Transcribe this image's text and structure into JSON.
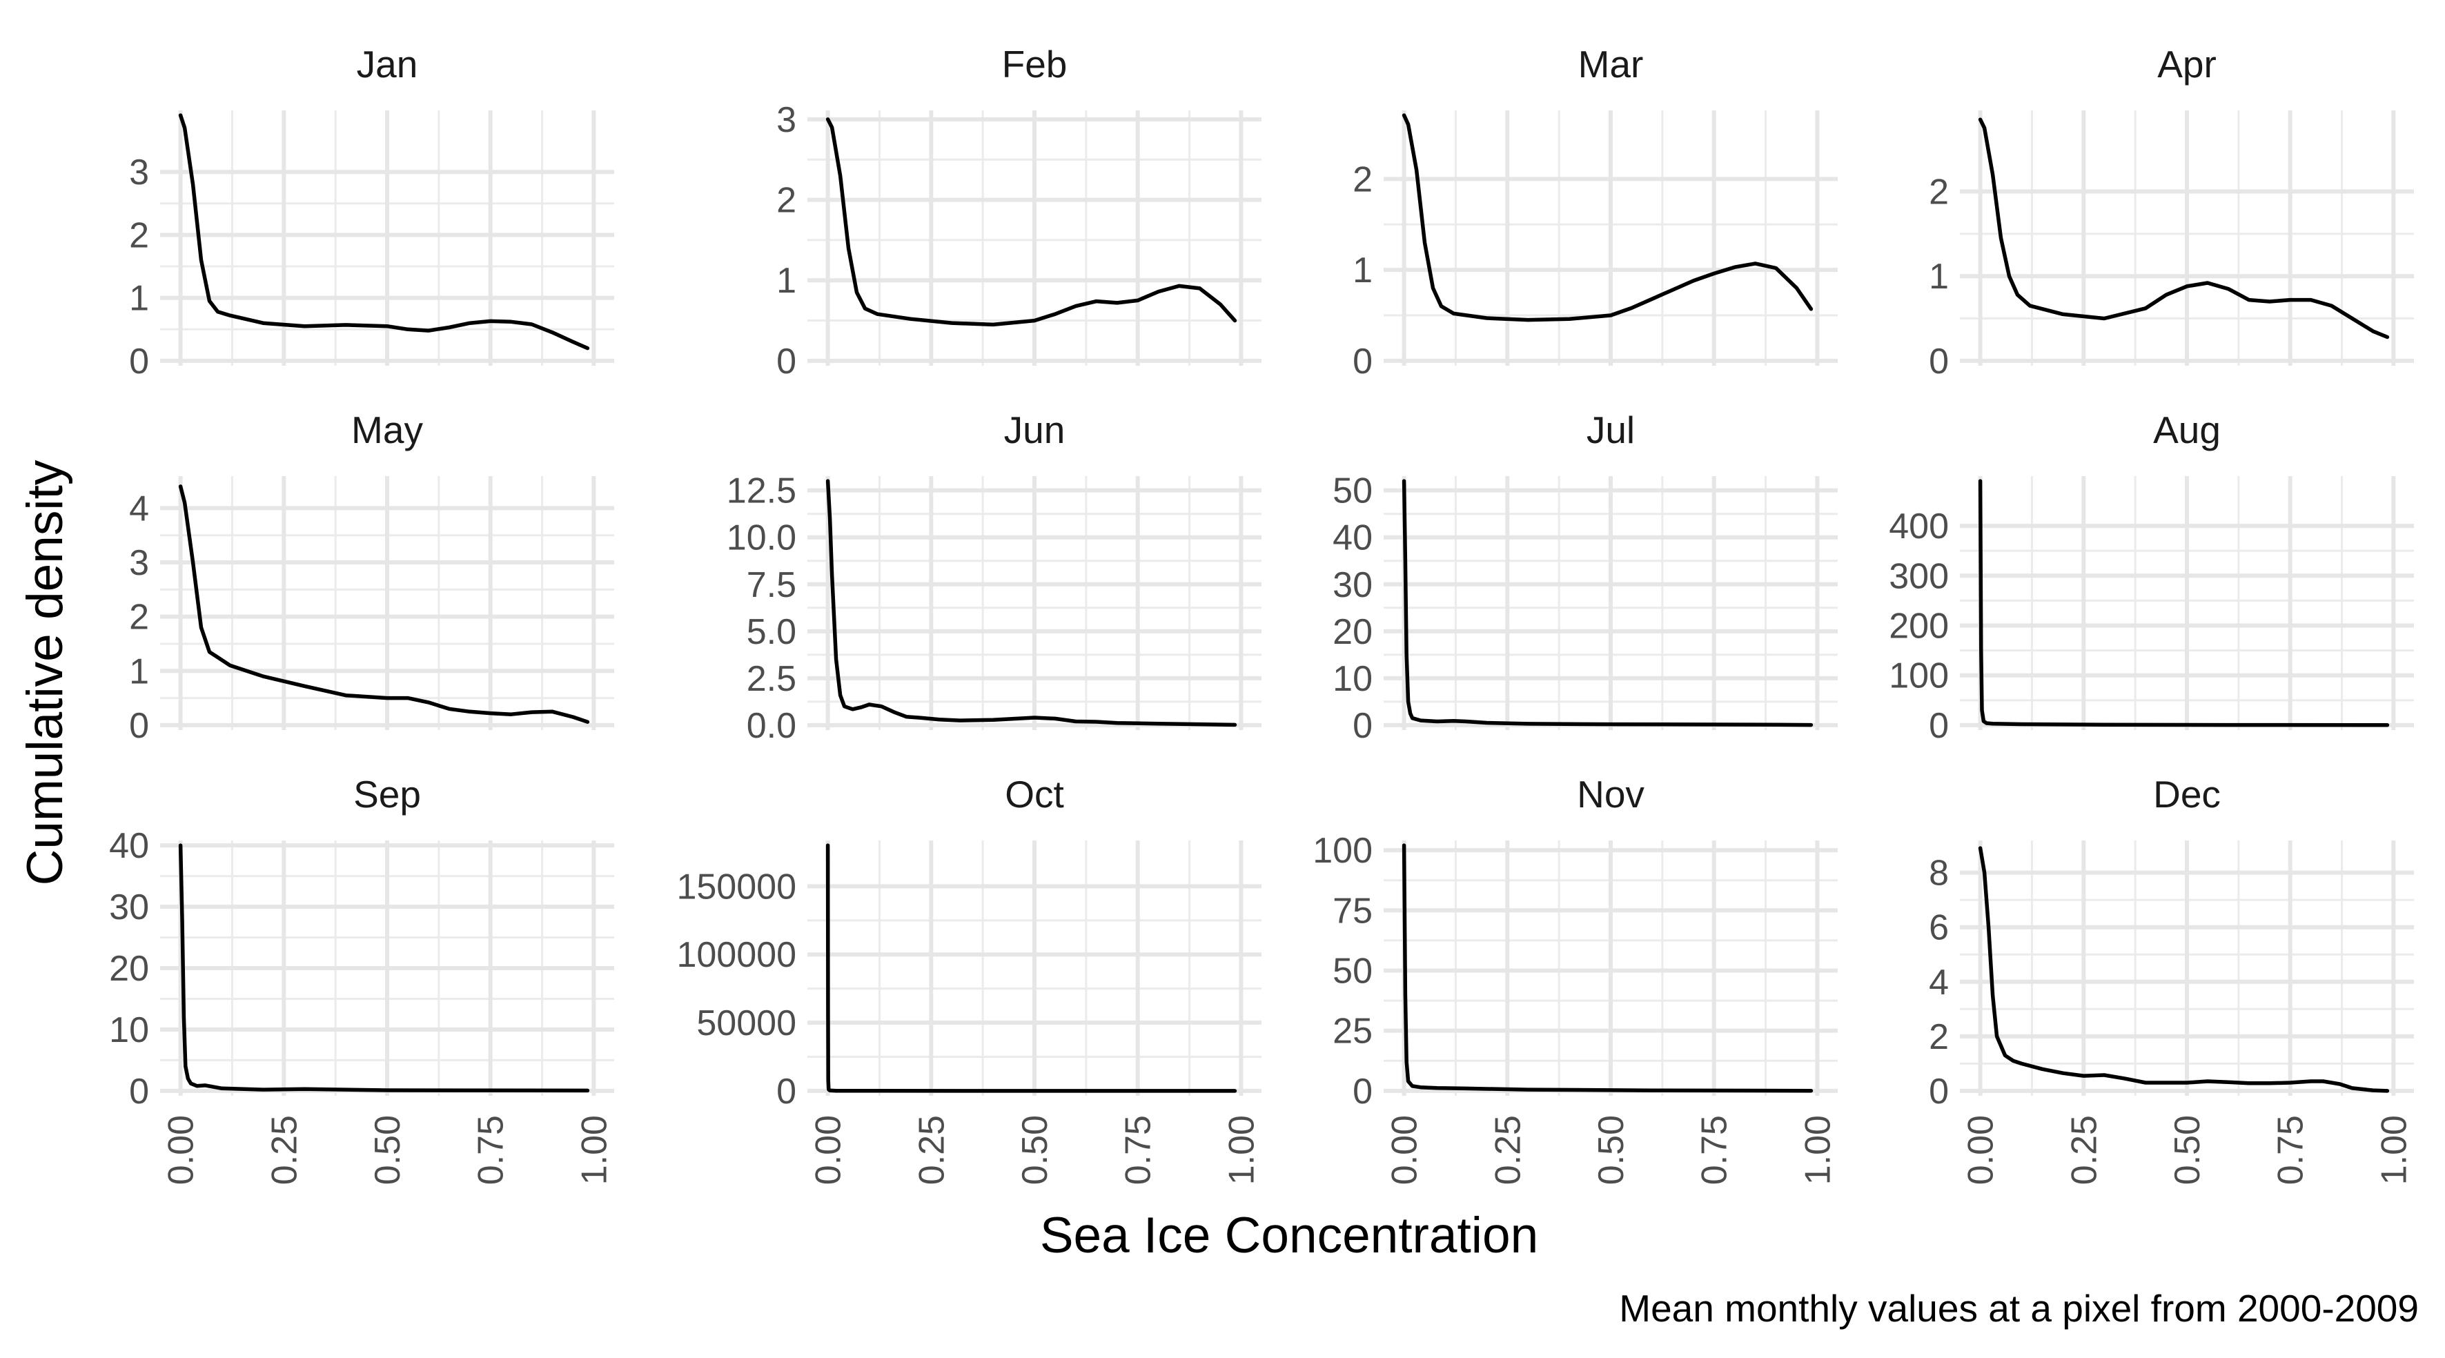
{
  "chart_data": {
    "type": "line",
    "xlabel": "Sea Ice Concentration",
    "ylabel": "Cumulative density",
    "caption": "Mean monthly values at a pixel from 2000-2009",
    "xlim": [
      0,
      1
    ],
    "x_ticks": [
      0,
      0.25,
      0.5,
      0.75,
      1
    ],
    "x_tick_labels": [
      "0.00",
      "0.25",
      "0.50",
      "0.75",
      "1.00"
    ],
    "grid": true,
    "shared_x": true,
    "free_y": true,
    "panels": [
      {
        "name": "Jan",
        "ylim": [
          0,
          3.9
        ],
        "y_ticks": [
          0,
          1,
          2,
          3
        ],
        "y_tick_labels": [
          "0",
          "1",
          "2",
          "3"
        ],
        "x": [
          0,
          0.01,
          0.03,
          0.05,
          0.07,
          0.09,
          0.12,
          0.2,
          0.3,
          0.4,
          0.5,
          0.55,
          0.6,
          0.65,
          0.7,
          0.75,
          0.8,
          0.85,
          0.9,
          0.95,
          0.985
        ],
        "y": [
          3.9,
          3.7,
          2.8,
          1.6,
          0.95,
          0.78,
          0.72,
          0.6,
          0.55,
          0.57,
          0.55,
          0.5,
          0.48,
          0.53,
          0.6,
          0.63,
          0.62,
          0.58,
          0.45,
          0.3,
          0.2
        ]
      },
      {
        "name": "Feb",
        "ylim": [
          0,
          3.05
        ],
        "y_ticks": [
          0,
          1,
          2,
          3
        ],
        "y_tick_labels": [
          "0",
          "1",
          "2",
          "3"
        ],
        "x": [
          0,
          0.01,
          0.03,
          0.05,
          0.07,
          0.09,
          0.12,
          0.2,
          0.3,
          0.4,
          0.5,
          0.55,
          0.6,
          0.65,
          0.7,
          0.75,
          0.8,
          0.85,
          0.9,
          0.95,
          0.985
        ],
        "y": [
          3.0,
          2.9,
          2.3,
          1.4,
          0.85,
          0.65,
          0.58,
          0.52,
          0.47,
          0.45,
          0.5,
          0.58,
          0.68,
          0.74,
          0.72,
          0.75,
          0.86,
          0.93,
          0.9,
          0.7,
          0.5
        ]
      },
      {
        "name": "Mar",
        "ylim": [
          0,
          2.7
        ],
        "y_ticks": [
          0,
          1,
          2
        ],
        "y_tick_labels": [
          "0",
          "1",
          "2"
        ],
        "x": [
          0,
          0.01,
          0.03,
          0.05,
          0.07,
          0.09,
          0.12,
          0.2,
          0.3,
          0.4,
          0.5,
          0.55,
          0.6,
          0.65,
          0.7,
          0.75,
          0.8,
          0.85,
          0.9,
          0.95,
          0.985
        ],
        "y": [
          2.7,
          2.6,
          2.1,
          1.3,
          0.8,
          0.6,
          0.52,
          0.47,
          0.45,
          0.46,
          0.5,
          0.58,
          0.68,
          0.78,
          0.88,
          0.96,
          1.03,
          1.07,
          1.02,
          0.8,
          0.57
        ]
      },
      {
        "name": "Apr",
        "ylim": [
          0,
          2.9
        ],
        "y_ticks": [
          0,
          1,
          2
        ],
        "y_tick_labels": [
          "0",
          "1",
          "2"
        ],
        "x": [
          0,
          0.01,
          0.03,
          0.05,
          0.07,
          0.09,
          0.12,
          0.2,
          0.3,
          0.4,
          0.45,
          0.5,
          0.55,
          0.6,
          0.65,
          0.7,
          0.75,
          0.8,
          0.85,
          0.9,
          0.95,
          0.985
        ],
        "y": [
          2.85,
          2.75,
          2.2,
          1.45,
          1.0,
          0.78,
          0.65,
          0.55,
          0.5,
          0.62,
          0.78,
          0.88,
          0.92,
          0.85,
          0.72,
          0.7,
          0.72,
          0.72,
          0.65,
          0.5,
          0.35,
          0.28
        ]
      },
      {
        "name": "May",
        "ylim": [
          0,
          4.5
        ],
        "y_ticks": [
          0,
          1,
          2,
          3,
          4
        ],
        "y_tick_labels": [
          "0",
          "1",
          "2",
          "3",
          "4"
        ],
        "x": [
          0,
          0.01,
          0.03,
          0.05,
          0.07,
          0.09,
          0.12,
          0.2,
          0.3,
          0.4,
          0.5,
          0.55,
          0.6,
          0.65,
          0.7,
          0.75,
          0.8,
          0.85,
          0.9,
          0.95,
          0.985
        ],
        "y": [
          4.4,
          4.1,
          3.0,
          1.8,
          1.35,
          1.25,
          1.1,
          0.9,
          0.72,
          0.55,
          0.5,
          0.5,
          0.42,
          0.3,
          0.25,
          0.22,
          0.2,
          0.24,
          0.25,
          0.15,
          0.06
        ]
      },
      {
        "name": "Jun",
        "ylim": [
          0,
          13
        ],
        "y_ticks": [
          0,
          2.5,
          5,
          7.5,
          10,
          12.5
        ],
        "y_tick_labels": [
          "0.0",
          "2.5",
          "5.0",
          "7.5",
          "10.0",
          "12.5"
        ],
        "x": [
          0,
          0.005,
          0.01,
          0.02,
          0.03,
          0.04,
          0.06,
          0.08,
          0.1,
          0.13,
          0.16,
          0.19,
          0.22,
          0.27,
          0.32,
          0.4,
          0.5,
          0.55,
          0.6,
          0.65,
          0.7,
          0.8,
          0.9,
          0.985
        ],
        "y": [
          13,
          11,
          8,
          3.5,
          1.6,
          1.0,
          0.85,
          0.95,
          1.1,
          1.0,
          0.7,
          0.45,
          0.4,
          0.3,
          0.25,
          0.28,
          0.4,
          0.35,
          0.2,
          0.18,
          0.12,
          0.08,
          0.05,
          0.02
        ]
      },
      {
        "name": "Jul",
        "ylim": [
          0,
          52
        ],
        "y_ticks": [
          0,
          10,
          20,
          30,
          40,
          50
        ],
        "y_tick_labels": [
          "0",
          "10",
          "20",
          "30",
          "40",
          "50"
        ],
        "x": [
          0,
          0.003,
          0.006,
          0.01,
          0.015,
          0.02,
          0.04,
          0.08,
          0.12,
          0.15,
          0.2,
          0.3,
          0.5,
          0.7,
          0.9,
          0.985
        ],
        "y": [
          52,
          35,
          15,
          5,
          2.5,
          1.5,
          1.0,
          0.8,
          0.9,
          0.8,
          0.5,
          0.3,
          0.2,
          0.15,
          0.1,
          0.05
        ]
      },
      {
        "name": "Aug",
        "ylim": [
          0,
          490
        ],
        "y_ticks": [
          0,
          100,
          200,
          300,
          400
        ],
        "y_tick_labels": [
          "0",
          "100",
          "200",
          "300",
          "400"
        ],
        "x": [
          0,
          0.002,
          0.004,
          0.008,
          0.015,
          0.03,
          0.1,
          0.3,
          0.6,
          0.985
        ],
        "y": [
          490,
          150,
          30,
          8,
          4,
          3,
          2,
          1,
          0.5,
          0.2
        ]
      },
      {
        "name": "Sep",
        "ylim": [
          0,
          40
        ],
        "y_ticks": [
          0,
          10,
          20,
          30,
          40
        ],
        "y_tick_labels": [
          "0",
          "10",
          "20",
          "30",
          "40"
        ],
        "x": [
          0,
          0.004,
          0.008,
          0.012,
          0.018,
          0.025,
          0.04,
          0.06,
          0.1,
          0.2,
          0.3,
          0.5,
          0.985
        ],
        "y": [
          40,
          28,
          12,
          4,
          2,
          1.2,
          0.8,
          0.9,
          0.4,
          0.2,
          0.3,
          0.1,
          0.05
        ]
      },
      {
        "name": "Oct",
        "ylim": [
          0,
          180000
        ],
        "y_ticks": [
          0,
          50000,
          100000,
          150000
        ],
        "y_tick_labels": [
          "0",
          "50000",
          "100000",
          "150000"
        ],
        "x": [
          0,
          0.0005,
          0.001,
          0.002,
          0.005,
          0.02,
          0.1,
          0.5,
          0.985
        ],
        "y": [
          180000,
          60000,
          8000,
          1000,
          300,
          100,
          20,
          5,
          0
        ]
      },
      {
        "name": "Nov",
        "ylim": [
          0,
          102
        ],
        "y_ticks": [
          0,
          25,
          50,
          75,
          100
        ],
        "y_tick_labels": [
          "0",
          "25",
          "50",
          "75",
          "100"
        ],
        "x": [
          0,
          0.003,
          0.006,
          0.01,
          0.02,
          0.04,
          0.08,
          0.15,
          0.3,
          0.6,
          0.985
        ],
        "y": [
          102,
          40,
          12,
          4,
          2,
          1.5,
          1.2,
          1.0,
          0.5,
          0.2,
          0.05
        ]
      },
      {
        "name": "Dec",
        "ylim": [
          0,
          9
        ],
        "y_ticks": [
          0,
          2,
          4,
          6,
          8
        ],
        "y_tick_labels": [
          "0",
          "2",
          "4",
          "6",
          "8"
        ],
        "x": [
          0,
          0.01,
          0.02,
          0.03,
          0.04,
          0.06,
          0.08,
          0.1,
          0.15,
          0.2,
          0.25,
          0.3,
          0.35,
          0.4,
          0.5,
          0.55,
          0.6,
          0.65,
          0.7,
          0.75,
          0.8,
          0.83,
          0.87,
          0.9,
          0.95,
          0.985
        ],
        "y": [
          8.9,
          8.0,
          6.0,
          3.5,
          2.0,
          1.3,
          1.1,
          1.0,
          0.8,
          0.65,
          0.55,
          0.58,
          0.45,
          0.3,
          0.3,
          0.35,
          0.32,
          0.28,
          0.28,
          0.3,
          0.35,
          0.35,
          0.25,
          0.1,
          0.02,
          0.0
        ]
      }
    ]
  }
}
